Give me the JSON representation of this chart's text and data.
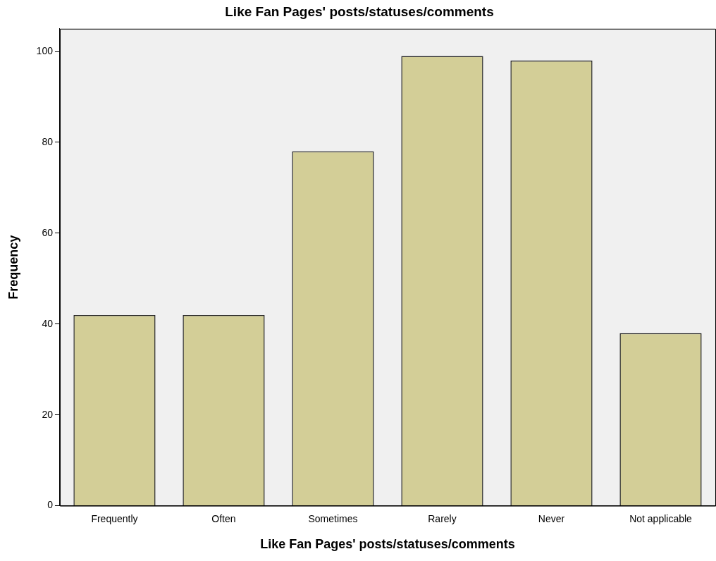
{
  "chart_data": {
    "type": "bar",
    "title": "Like Fan Pages' posts/statuses/comments",
    "xlabel": "Like Fan Pages' posts/statuses/comments",
    "ylabel": "Frequency",
    "categories": [
      "Frequently",
      "Often",
      "Sometimes",
      "Rarely",
      "Never",
      "Not applicable"
    ],
    "values": [
      42,
      42,
      78,
      99,
      98,
      38
    ],
    "color": "#d3ce97",
    "ylim": [
      0,
      105
    ],
    "yticks": [
      0,
      20,
      40,
      60,
      80,
      100
    ],
    "grid": false,
    "legend": false
  }
}
